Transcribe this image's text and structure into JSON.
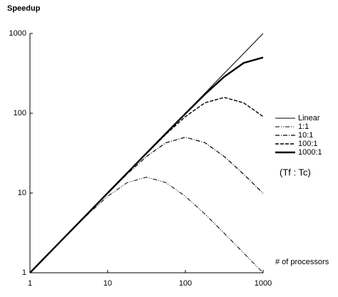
{
  "chart_data": {
    "type": "line",
    "title": "Speedup",
    "x_label": "# of processors",
    "annotation": "(Tf : Tc)",
    "log_x": true,
    "log_y": true,
    "xlim": [
      1,
      1000
    ],
    "ylim": [
      1,
      1000
    ],
    "xticks": [
      1,
      10,
      100,
      1000
    ],
    "yticks": [
      1,
      10,
      100,
      1000
    ],
    "x": [
      1,
      1.78,
      3.16,
      5.62,
      10,
      17.8,
      31.6,
      56.2,
      100,
      178,
      316,
      562,
      1000
    ],
    "series": [
      {
        "name": "Linear",
        "color": "#000000",
        "width": 1,
        "dash": "none",
        "values": [
          1,
          1.78,
          3.16,
          5.62,
          10,
          17.8,
          31.6,
          56.2,
          100,
          178,
          316,
          562,
          1000
        ]
      },
      {
        "name": "1:1",
        "color": "#000000",
        "width": 1,
        "dash": "6 2 1 2 1 2",
        "values": [
          1,
          1.77,
          3.13,
          5.45,
          9.09,
          13.5,
          15.8,
          13.5,
          9.09,
          5.46,
          3.13,
          1.77,
          1.0
        ]
      },
      {
        "name": "10:1",
        "color": "#000000",
        "width": 1.2,
        "dash": "6 2 1 2",
        "values": [
          1,
          1.78,
          3.16,
          5.6,
          9.9,
          17.3,
          28.7,
          42.7,
          50,
          42.8,
          28.7,
          17.2,
          9.9
        ]
      },
      {
        "name": "100:1",
        "color": "#000000",
        "width": 1.4,
        "dash": "5 2",
        "values": [
          1,
          1.78,
          3.16,
          5.62,
          9.99,
          17.7,
          31.3,
          54.5,
          90.9,
          135,
          158,
          135,
          90.9
        ]
      },
      {
        "name": "1000:1",
        "color": "#000000",
        "width": 2.4,
        "dash": "none",
        "values": [
          1,
          1.78,
          3.16,
          5.62,
          10,
          17.8,
          31.6,
          56,
          99,
          172.5,
          287,
          427,
          500
        ]
      }
    ]
  }
}
